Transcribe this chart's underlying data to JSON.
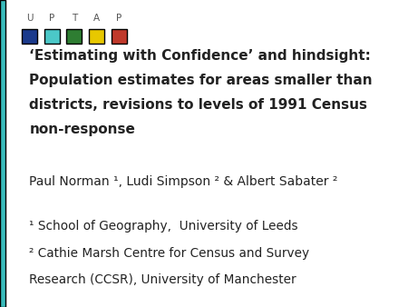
{
  "background_color": "#ffffff",
  "left_bar_color": "#39BCBC",
  "uptap_letters": [
    "U",
    "P",
    "T",
    "A",
    "P"
  ],
  "uptap_colors": [
    "#1B3A8C",
    "#4BC8C8",
    "#2E7D32",
    "#E8C800",
    "#C0392B"
  ],
  "title_line1": "‘Estimating with Confidence’ and hindsight:",
  "title_line2": "Population estimates for areas smaller than",
  "title_line3": "districts, revisions to levels of 1991 Census",
  "title_line4": "non-response",
  "author_line": "Paul Norman ¹, Ludi Simpson ² & Albert Sabater ²",
  "affil1": "¹ School of Geography,  University of Leeds",
  "affil2_line1": "² Cathie Marsh Centre for Census and Survey",
  "affil2_line2": "Research (CCSR), University of Manchester",
  "text_color": "#222222",
  "title_fontsize": 11.0,
  "author_fontsize": 10.0,
  "affil_fontsize": 9.8,
  "uptap_fontsize": 7.5,
  "left_bar_width": 0.013
}
